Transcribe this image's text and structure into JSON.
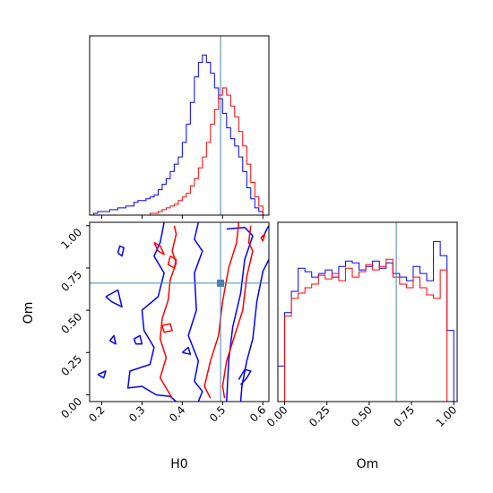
{
  "chart_data": {
    "type": "corner",
    "parameters": [
      "H0",
      "Om"
    ],
    "truths": {
      "H0": 0.495,
      "Om": 0.66
    },
    "colors": {
      "series_1": "#0000ff",
      "series_2": "#ff0000",
      "truth": "#4682b4"
    },
    "H0_hist": {
      "xlim": [
        0.17,
        0.615
      ],
      "ticks": [
        0.2,
        0.3,
        0.4,
        0.5,
        0.6
      ],
      "edges": [
        0.17,
        0.18,
        0.19,
        0.2,
        0.21,
        0.22,
        0.23,
        0.24,
        0.25,
        0.26,
        0.27,
        0.28,
        0.29,
        0.3,
        0.31,
        0.32,
        0.33,
        0.34,
        0.35,
        0.36,
        0.37,
        0.38,
        0.39,
        0.4,
        0.41,
        0.42,
        0.43,
        0.44,
        0.45,
        0.46,
        0.47,
        0.48,
        0.49,
        0.5,
        0.51,
        0.52,
        0.53,
        0.54,
        0.55,
        0.56,
        0.57,
        0.58,
        0.59,
        0.6,
        0.61
      ],
      "series": [
        {
          "color": "#0000ff",
          "values": [
            0,
            1,
            2,
            2,
            2,
            3,
            3,
            4,
            4,
            5,
            5,
            7,
            8,
            8,
            9,
            10,
            11,
            14,
            17,
            20,
            24,
            28,
            32,
            40,
            50,
            62,
            76,
            84,
            88,
            84,
            78,
            70,
            64,
            56,
            48,
            42,
            38,
            32,
            24,
            15,
            9,
            4,
            2,
            0
          ]
        },
        {
          "color": "#ff0000",
          "values": [
            0,
            0,
            0,
            0,
            0,
            0,
            0,
            0,
            0,
            0,
            0,
            0,
            0,
            0,
            0,
            1,
            1,
            2,
            3,
            4,
            5,
            6,
            8,
            10,
            12,
            16,
            20,
            26,
            32,
            40,
            50,
            58,
            66,
            70,
            66,
            60,
            54,
            46,
            38,
            28,
            18,
            10,
            5,
            0
          ]
        }
      ]
    },
    "Om_hist": {
      "xlim": [
        -0.04,
        1.02
      ],
      "ticks": [
        0.0,
        0.25,
        0.5,
        0.75,
        1.0
      ],
      "tick_labels": [
        "0.00",
        "0.25",
        "0.50",
        "0.75",
        "1.00"
      ],
      "edges": [
        -0.04,
        0.0,
        0.04,
        0.08,
        0.12,
        0.16,
        0.2,
        0.24,
        0.28,
        0.32,
        0.36,
        0.4,
        0.44,
        0.48,
        0.52,
        0.56,
        0.6,
        0.64,
        0.68,
        0.72,
        0.76,
        0.8,
        0.84,
        0.88,
        0.92,
        0.96,
        1.0
      ],
      "series": [
        {
          "color": "#0000ff",
          "values": [
            20,
            50,
            62,
            75,
            73,
            70,
            72,
            74,
            70,
            76,
            79,
            78,
            74,
            76,
            79,
            75,
            78,
            72,
            70,
            68,
            76,
            72,
            68,
            90,
            82,
            40
          ]
        },
        {
          "color": "#ff0000",
          "values": [
            0,
            48,
            58,
            61,
            64,
            66,
            71,
            69,
            72,
            68,
            75,
            70,
            73,
            77,
            74,
            76,
            80,
            70,
            66,
            64,
            70,
            64,
            60,
            58,
            74,
            0
          ]
        }
      ]
    },
    "joint": {
      "x_param": "H0",
      "y_param": "Om",
      "xlim": [
        0.17,
        0.615
      ],
      "ylim": [
        -0.04,
        1.02
      ],
      "x_ticks": [
        0.2,
        0.3,
        0.4,
        0.5,
        0.6
      ],
      "y_ticks": [
        0.0,
        0.25,
        0.5,
        0.75,
        1.0
      ],
      "y_tick_labels": [
        "0.00",
        "0.25",
        "0.50",
        "0.75",
        "1.00"
      ],
      "contours": [
        {
          "color": "#0000ff",
          "paths": [
            [
              [
                0.355,
                1.02
              ],
              [
                0.345,
                0.9
              ],
              [
                0.33,
                0.82
              ],
              [
                0.355,
                0.72
              ],
              [
                0.34,
                0.58
              ],
              [
                0.3,
                0.5
              ],
              [
                0.305,
                0.38
              ],
              [
                0.33,
                0.28
              ],
              [
                0.32,
                0.18
              ],
              [
                0.27,
                0.14
              ],
              [
                0.265,
                0.04
              ],
              [
                0.3,
                0.05
              ],
              [
                0.335,
                0.0
              ],
              [
                0.37,
                -0.01
              ],
              [
                0.385,
                -0.04
              ]
            ],
            [
              [
                0.44,
                1.02
              ],
              [
                0.43,
                0.92
              ],
              [
                0.45,
                0.85
              ],
              [
                0.43,
                0.72
              ],
              [
                0.435,
                0.5
              ],
              [
                0.415,
                0.35
              ],
              [
                0.44,
                0.2
              ],
              [
                0.43,
                0.08
              ],
              [
                0.45,
                0.02
              ],
              [
                0.44,
                -0.04
              ]
            ],
            [
              [
                0.51,
                0.98
              ],
              [
                0.555,
                0.99
              ],
              [
                0.575,
                0.94
              ],
              [
                0.555,
                0.8
              ],
              [
                0.545,
                0.6
              ],
              [
                0.525,
                0.4
              ],
              [
                0.515,
                0.2
              ],
              [
                0.51,
                -0.04
              ]
            ],
            [
              [
                0.6,
                0.93
              ],
              [
                0.61,
                0.98
              ],
              [
                0.615,
                1.0
              ]
            ],
            [
              [
                0.615,
                0.8
              ],
              [
                0.6,
                0.73
              ],
              [
                0.585,
                0.55
              ],
              [
                0.575,
                0.33
              ],
              [
                0.56,
                0.2
              ],
              [
                0.548,
                0.05
              ],
              [
                0.545,
                -0.04
              ]
            ],
            [
              [
                0.19,
                0.12
              ],
              [
                0.21,
                0.14
              ],
              [
                0.205,
                0.1
              ],
              [
                0.19,
                0.12
              ]
            ],
            [
              [
                0.24,
                0.84
              ],
              [
                0.25,
                0.82
              ],
              [
                0.255,
                0.87
              ],
              [
                0.245,
                0.88
              ],
              [
                0.24,
                0.84
              ]
            ],
            [
              [
                0.21,
                0.58
              ],
              [
                0.24,
                0.62
              ],
              [
                0.25,
                0.52
              ],
              [
                0.225,
                0.55
              ],
              [
                0.21,
                0.58
              ]
            ],
            [
              [
                0.22,
                0.32
              ],
              [
                0.23,
                0.35
              ],
              [
                0.235,
                0.3
              ],
              [
                0.22,
                0.32
              ]
            ],
            [
              [
                0.28,
                0.33
              ],
              [
                0.295,
                0.35
              ],
              [
                0.3,
                0.3
              ],
              [
                0.285,
                0.3
              ],
              [
                0.28,
                0.33
              ]
            ],
            [
              [
                0.4,
                0.25
              ],
              [
                0.42,
                0.24
              ],
              [
                0.415,
                0.28
              ],
              [
                0.4,
                0.25
              ]
            ],
            [
              [
                0.545,
                0.06
              ],
              [
                0.56,
                0.1
              ],
              [
                0.57,
                0.14
              ],
              [
                0.555,
                0.15
              ],
              [
                0.54,
                0.09
              ]
            ]
          ]
        },
        {
          "color": "#ff0000",
          "paths": [
            [
              [
                0.38,
                1.0
              ],
              [
                0.385,
                0.95
              ],
              [
                0.375,
                0.85
              ],
              [
                0.385,
                0.78
              ],
              [
                0.37,
                0.68
              ],
              [
                0.365,
                0.56
              ],
              [
                0.35,
                0.45
              ],
              [
                0.345,
                0.33
              ],
              [
                0.36,
                0.22
              ],
              [
                0.345,
                0.1
              ],
              [
                0.37,
                0.0
              ],
              [
                0.375,
                -0.02
              ]
            ],
            [
              [
                0.54,
                1.02
              ],
              [
                0.535,
                0.9
              ],
              [
                0.515,
                0.75
              ],
              [
                0.5,
                0.55
              ],
              [
                0.49,
                0.35
              ],
              [
                0.47,
                0.2
              ],
              [
                0.455,
                0.05
              ],
              [
                0.47,
                -0.02
              ]
            ],
            [
              [
                0.57,
                1.0
              ],
              [
                0.565,
                0.9
              ],
              [
                0.575,
                0.85
              ],
              [
                0.56,
                0.7
              ],
              [
                0.55,
                0.5
              ],
              [
                0.53,
                0.35
              ],
              [
                0.51,
                0.2
              ],
              [
                0.5,
                0.05
              ],
              [
                0.505,
                -0.02
              ]
            ],
            [
              [
                0.33,
                0.9
              ],
              [
                0.345,
                0.88
              ],
              [
                0.355,
                0.83
              ],
              [
                0.34,
                0.85
              ],
              [
                0.33,
                0.9
              ]
            ],
            [
              [
                0.37,
                0.82
              ],
              [
                0.385,
                0.8
              ],
              [
                0.38,
                0.75
              ],
              [
                0.365,
                0.77
              ],
              [
                0.37,
                0.82
              ]
            ],
            [
              [
                0.35,
                0.41
              ],
              [
                0.37,
                0.42
              ],
              [
                0.375,
                0.38
              ],
              [
                0.355,
                0.37
              ],
              [
                0.35,
                0.41
              ]
            ],
            [
              [
                0.595,
                0.93
              ],
              [
                0.605,
                0.95
              ],
              [
                0.6,
                0.91
              ],
              [
                0.595,
                0.93
              ]
            ]
          ]
        }
      ]
    },
    "xlabels": {
      "H0": "H0",
      "Om": "Om"
    },
    "ylabels": {
      "Om": "Om"
    }
  }
}
